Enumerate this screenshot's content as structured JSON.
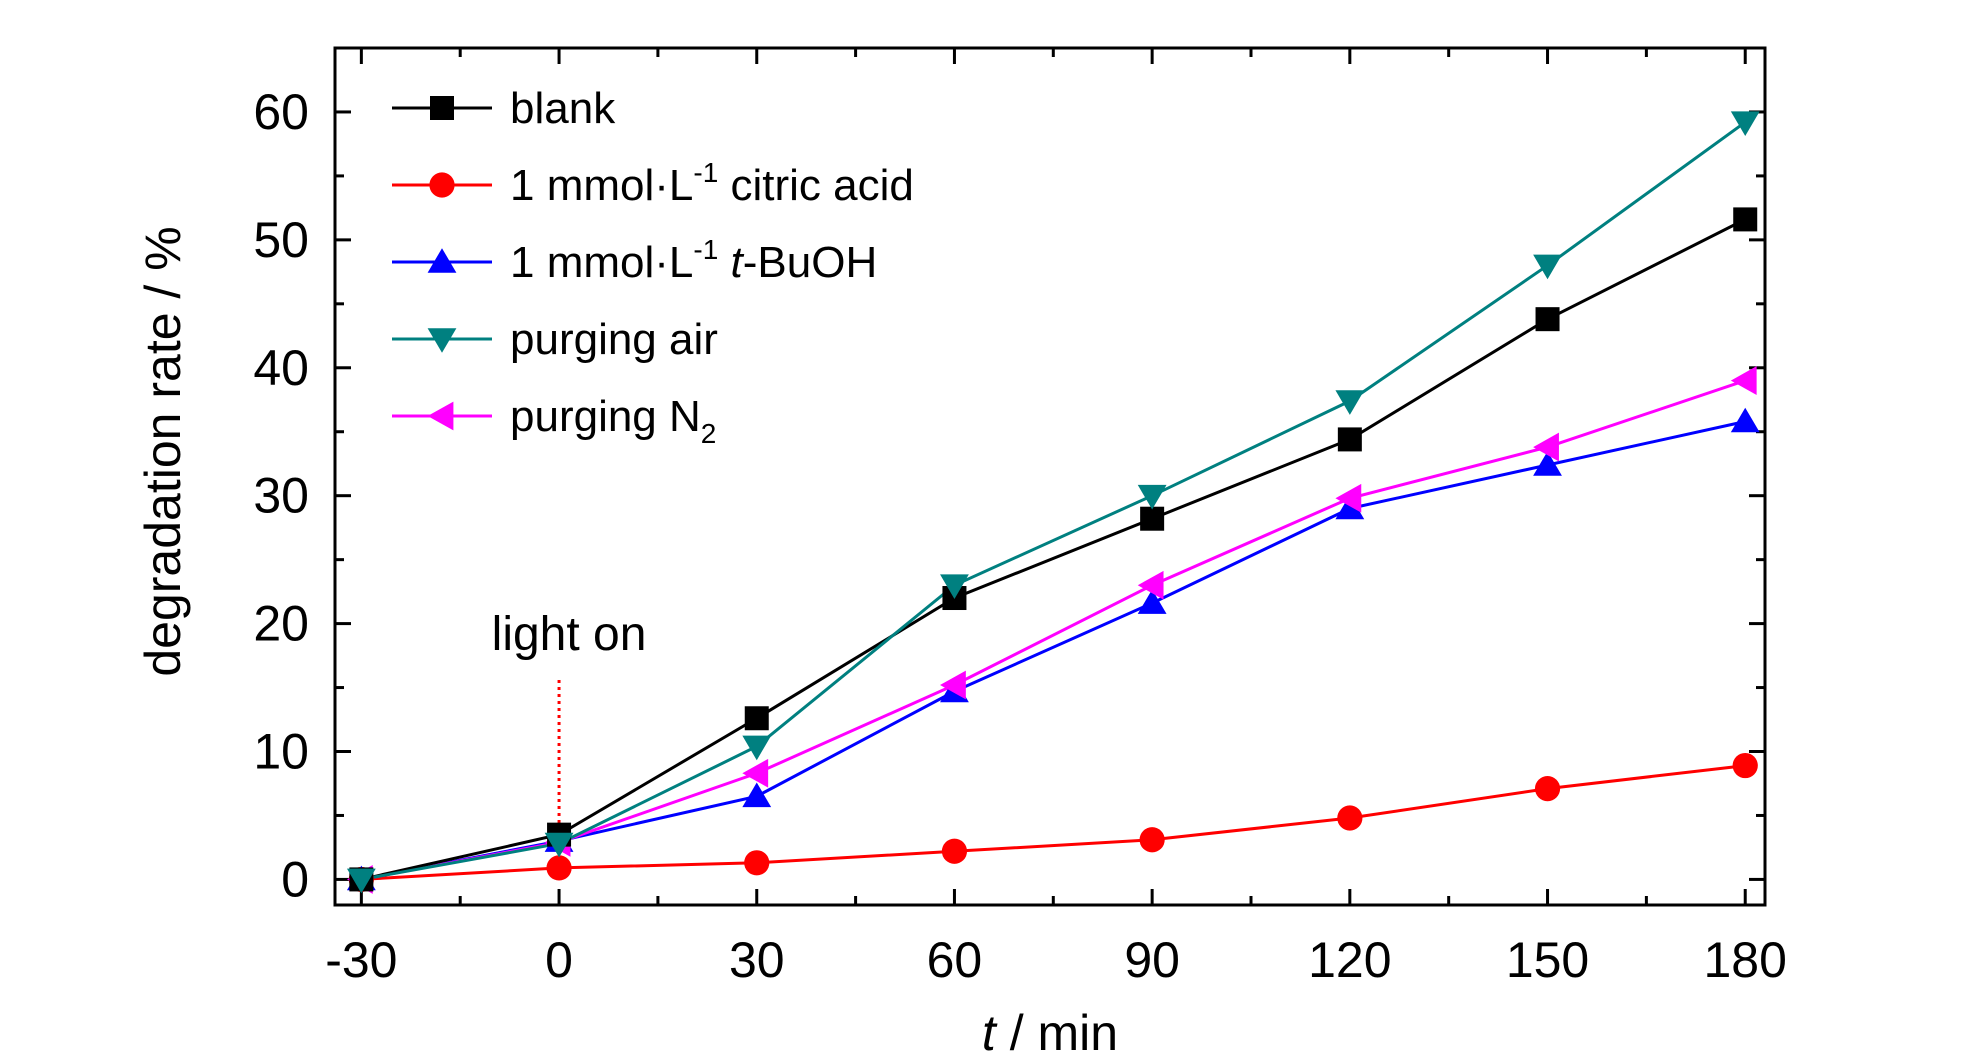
{
  "chart_data": {
    "type": "line",
    "xlabel_italic": "t",
    "xlabel_rest": " / min",
    "ylabel": "degradation rate / %",
    "xlim": [
      -34,
      183
    ],
    "ylim": [
      -2,
      65
    ],
    "xticks": [
      -30,
      0,
      30,
      60,
      90,
      120,
      150,
      180
    ],
    "yticks": [
      0,
      10,
      20,
      30,
      40,
      50,
      60
    ],
    "x": [
      -30,
      0,
      30,
      60,
      90,
      120,
      150,
      180
    ],
    "legend_position": "top-left",
    "series": [
      {
        "name": "blank",
        "color": "#000000",
        "marker": "square",
        "values": [
          0,
          3.5,
          12.6,
          22.0,
          28.2,
          34.4,
          43.8,
          51.6
        ]
      },
      {
        "name": "1 mmol·L-1 citric acid",
        "name_parts": [
          "1 mmol·L",
          "-1",
          " citric acid"
        ],
        "color": "#ff0000",
        "marker": "circle",
        "values": [
          0,
          0.9,
          1.3,
          2.2,
          3.1,
          4.8,
          7.1,
          8.9
        ]
      },
      {
        "name": "1 mmol·L-1 t-BuOH",
        "name_parts": [
          "1 mmol·L",
          "-1",
          " ",
          "t",
          "-BuOH"
        ],
        "color": "#0000ff",
        "marker": "triangle-up",
        "values": [
          0,
          3.0,
          6.5,
          14.7,
          21.6,
          29.0,
          32.4,
          35.8
        ]
      },
      {
        "name": "purging air",
        "color": "#008080",
        "marker": "triangle-down",
        "values": [
          0,
          2.8,
          10.4,
          23.0,
          30.0,
          37.4,
          48.0,
          59.2
        ]
      },
      {
        "name": "purging N2",
        "name_parts": [
          "purging N",
          "2"
        ],
        "color": "#ff00ff",
        "marker": "triangle-left",
        "values": [
          0,
          2.9,
          8.3,
          15.2,
          23.0,
          29.8,
          33.8,
          39.0
        ]
      }
    ],
    "annotations": [
      {
        "text": "light on",
        "x": 0,
        "arrow_color": "#ff0000"
      }
    ]
  }
}
